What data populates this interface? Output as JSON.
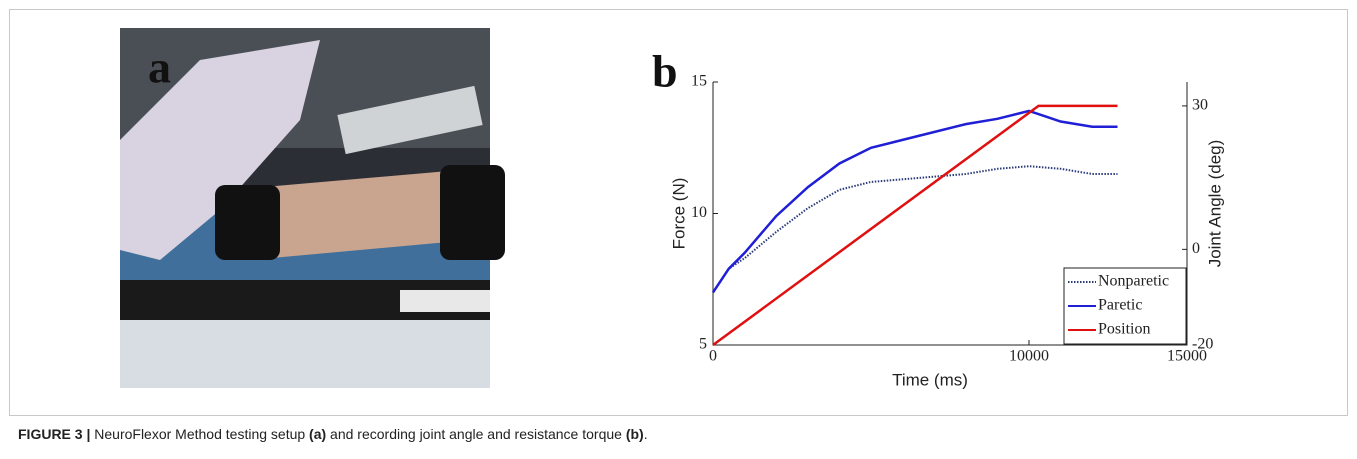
{
  "panel_labels": [
    "a",
    "b"
  ],
  "caption": {
    "label": "FIGURE 3 |",
    "parts": [
      {
        "text": " NeuroFlexor Method testing setup ",
        "bold": false
      },
      {
        "text": "(a)",
        "bold": true
      },
      {
        "text": " and recording joint angle and resistance torque ",
        "bold": false
      },
      {
        "text": "(b)",
        "bold": true
      },
      {
        "text": ".",
        "bold": false
      }
    ]
  },
  "chart_data": {
    "type": "line",
    "x_label": "Time (ms)",
    "y_label": "Force (N)",
    "y2_label": "Joint Angle (deg)",
    "xlim": [
      0,
      15000
    ],
    "xticks": [
      0,
      10000,
      15000
    ],
    "ylim": [
      5,
      15
    ],
    "yticks": [
      5,
      10,
      15
    ],
    "y2lim": [
      -20,
      35
    ],
    "y2ticks": [
      -20,
      0,
      30
    ],
    "legend": "lower right",
    "series": [
      {
        "name": "Nonparetic",
        "color": "#2a3a7a",
        "style": "dotted",
        "x": [
          0,
          500,
          1000,
          2000,
          3000,
          4000,
          5000,
          6000,
          7000,
          8000,
          9000,
          10000,
          11000,
          12000,
          12800
        ],
        "values": [
          7.0,
          7.9,
          8.3,
          9.3,
          10.2,
          10.9,
          11.2,
          11.3,
          11.4,
          11.5,
          11.7,
          11.8,
          11.7,
          11.5,
          11.5
        ]
      },
      {
        "name": "Paretic",
        "color": "#1f1fd6",
        "style": "solid",
        "x": [
          0,
          500,
          1000,
          2000,
          3000,
          4000,
          5000,
          6000,
          7000,
          8000,
          9000,
          10000,
          10500,
          11000,
          12000,
          12800
        ],
        "values": [
          7.0,
          7.9,
          8.5,
          9.9,
          11.0,
          11.9,
          12.5,
          12.8,
          13.1,
          13.4,
          13.6,
          13.9,
          13.7,
          13.5,
          13.3,
          13.3
        ]
      },
      {
        "name": "Position",
        "color": "#e01010",
        "style": "solid",
        "axis": "y2",
        "x": [
          0,
          10300,
          12800
        ],
        "values": [
          -20,
          30,
          30
        ]
      }
    ]
  }
}
